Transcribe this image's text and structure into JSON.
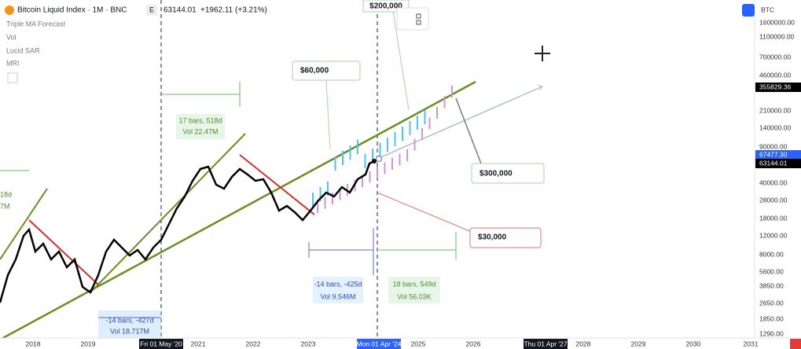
{
  "header": {
    "symbol": "Bitcoin Liquid Index · 1M · BNC",
    "badge": "E",
    "price": "63144.01",
    "change": "+1962.11 (+3.21%)"
  },
  "indicators": [
    "Triple MA Forecast",
    "Vol",
    "Lucid SAR",
    "MRI"
  ],
  "currency": "BTC",
  "price_axis": [
    "1600000.00",
    "1100000.00",
    "700000.00",
    "460000.00",
    "210000.00",
    "140000.00",
    "90000.00",
    "40000.00",
    "28000.00",
    "18000.00",
    "12000.00",
    "8000.00",
    "5600.00",
    "3850.00",
    "2650.00",
    "1850.00",
    "1290.00"
  ],
  "price_tags": [
    "355829.36",
    "67477.30",
    "63144.01"
  ],
  "time_axis": [
    "2018",
    "2019",
    "2021",
    "2022",
    "2023",
    "2025",
    "2026",
    "2028",
    "2029",
    "2030",
    "2031"
  ],
  "time_tags": [
    "Fri 01 May '20",
    "Mon 01 Apr '24",
    "Thu 01 Apr '27"
  ],
  "annotations": [
    "$200,000",
    "$60,000",
    "$300,000",
    "$30,000"
  ],
  "measurements": [
    {
      "bars": "17 bars, 518d",
      "vol": "Vol 22.47M"
    },
    {
      "bars": "-14 bars, -425d",
      "vol": "Vol 9.546M"
    },
    {
      "bars": "18 bars, 549d",
      "vol": "Vol 56.03K"
    },
    {
      "bars": "-14 bars, -427d",
      "vol": "Vol 18.717M"
    },
    {
      "bars": "18d",
      "vol": "7M"
    }
  ]
}
